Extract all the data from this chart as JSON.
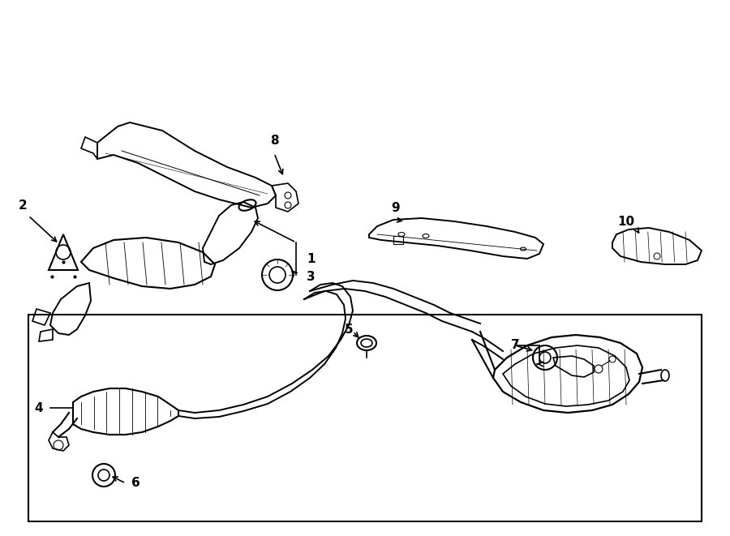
{
  "bg_color": "#ffffff",
  "line_color": "#000000",
  "line_width": 1.2,
  "fig_width": 9.0,
  "fig_height": 6.61
}
